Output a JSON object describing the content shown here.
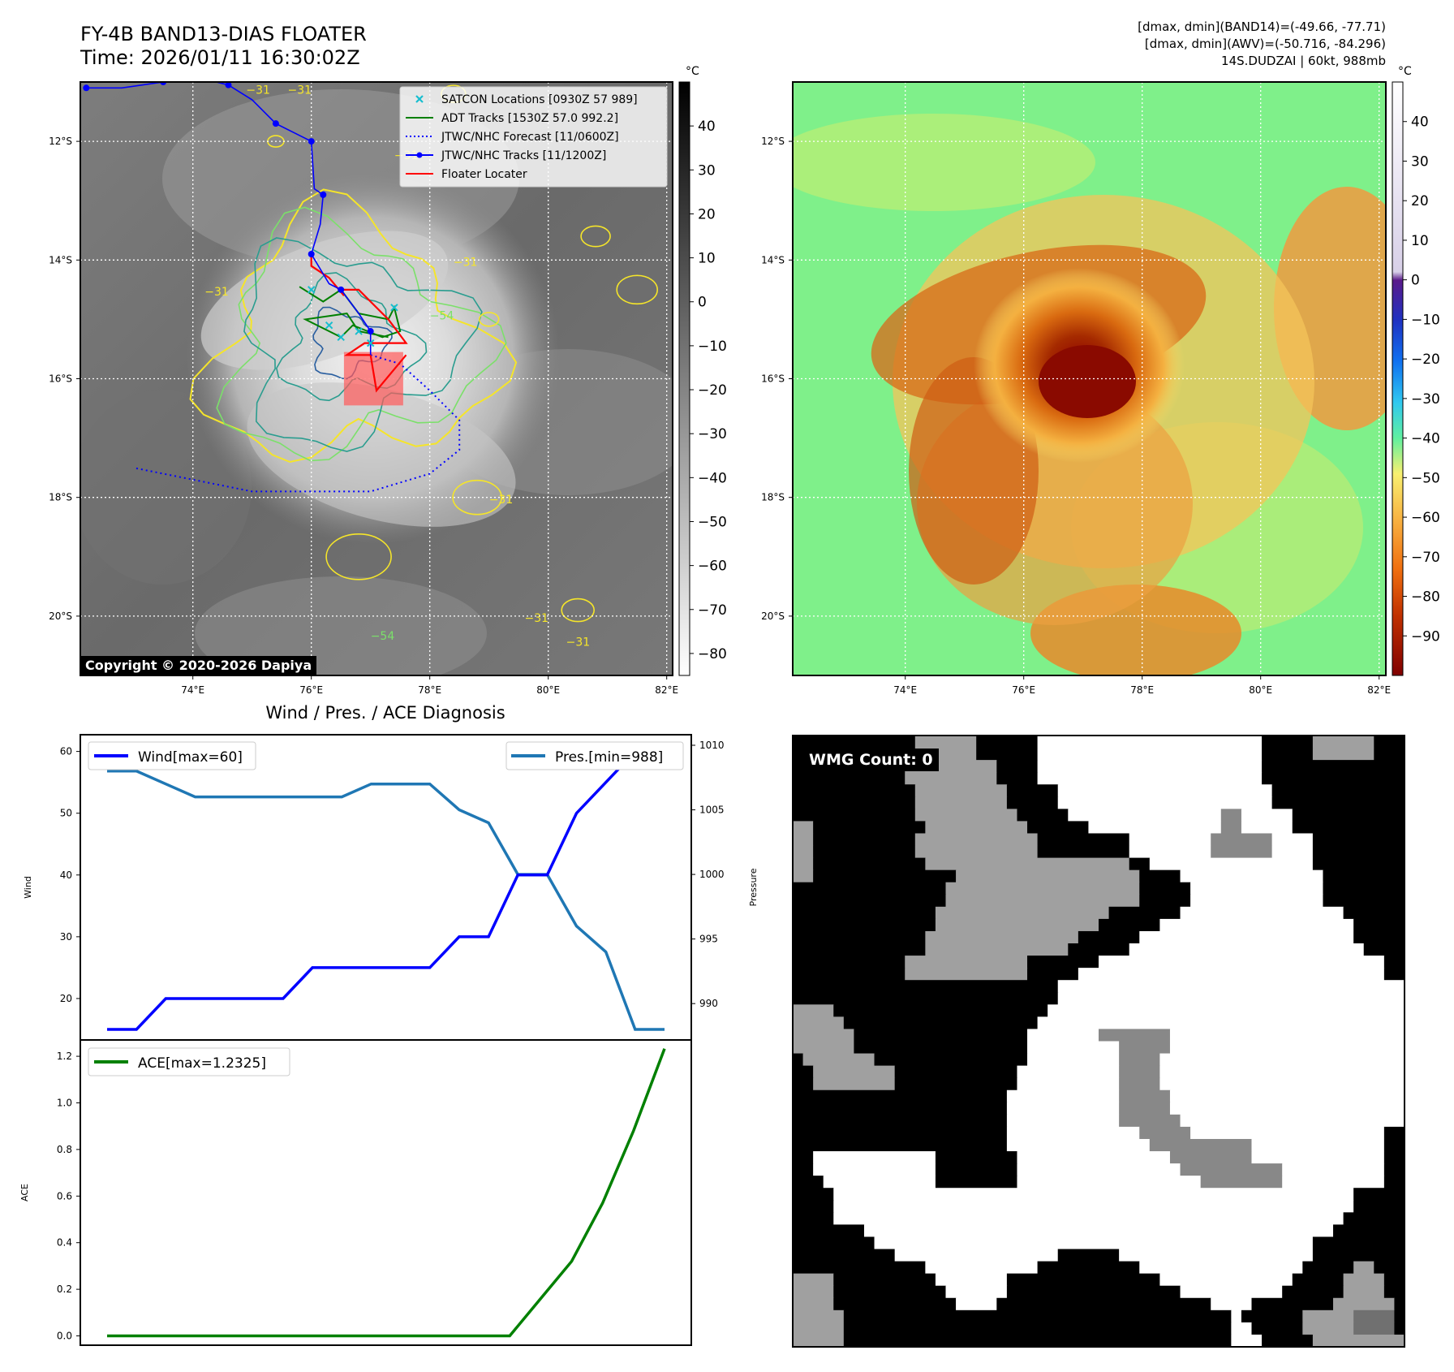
{
  "figure": {
    "title_line1": "FY-4B BAND13-DIAS FLOATER",
    "title_line2": "Time: 2026/01/11 16:30:02Z",
    "info_line1": "[dmax, dmin](BAND14)=(-49.66, -77.71)",
    "info_line2": "[dmax, dmin](AWV)=(-50.716, -84.296)",
    "info_line3": "14S.DUDZAI | 60kt, 988mb",
    "copyright": "Copyright © 2020-2026 Dapiya",
    "wmg_count": "WMG Count: 0"
  },
  "chart_data": [
    {
      "type": "map",
      "panel": "ir-enhanced",
      "lon_ticks": [
        "74°E",
        "76°E",
        "78°E",
        "80°E",
        "82°E"
      ],
      "lat_ticks": [
        "12°S",
        "14°S",
        "16°S",
        "18°S",
        "20°S"
      ],
      "lon_range": [
        72.1,
        82.1
      ],
      "lat_range": [
        -11.0,
        -21.0
      ],
      "colorbar": {
        "unit": "°C",
        "ticks": [
          40,
          30,
          20,
          10,
          0,
          -10,
          -20,
          -30,
          -40,
          -50,
          -60,
          -70,
          -80
        ],
        "range": [
          -85,
          50
        ],
        "cmap": "gray_r"
      },
      "contour_labels": [
        "−31",
        "−31",
        "−31",
        "−31",
        "−31",
        "−54",
        "−31",
        "−31",
        "−54",
        "−31"
      ],
      "legend": [
        {
          "label": "SATCON Locations [0930Z 57 989]",
          "color": "#17becf",
          "style": "x-marker"
        },
        {
          "label": "ADT Tracks [1530Z 57.0 992.2]",
          "color": "#008000",
          "style": "solid"
        },
        {
          "label": "JTWC/NHC Forecast [11/0600Z]",
          "color": "#0000ff",
          "style": "dotted"
        },
        {
          "label": "JTWC/NHC Tracks [11/1200Z]",
          "color": "#0000ff",
          "style": "solid-dot"
        },
        {
          "label": "Floater Locater",
          "color": "#ff0000",
          "style": "solid"
        }
      ],
      "jtwc_track": [
        [
          72.2,
          -11.1
        ],
        [
          72.8,
          -11.1
        ],
        [
          73.5,
          -11.0
        ],
        [
          74.0,
          -10.9
        ],
        [
          74.6,
          -11.05
        ],
        [
          75.0,
          -11.3
        ],
        [
          75.4,
          -11.7
        ],
        [
          75.8,
          -11.9
        ],
        [
          76.0,
          -12.0
        ],
        [
          76.05,
          -12.8
        ],
        [
          76.2,
          -12.9
        ],
        [
          76.15,
          -13.4
        ],
        [
          76.0,
          -13.9
        ],
        [
          76.3,
          -14.4
        ],
        [
          76.5,
          -14.5
        ],
        [
          76.8,
          -14.9
        ],
        [
          77.0,
          -15.2
        ],
        [
          77.0,
          -15.6
        ]
      ],
      "jtwc_forecast": [
        [
          77.0,
          -15.6
        ],
        [
          77.5,
          -15.75
        ],
        [
          78.0,
          -16.2
        ],
        [
          78.5,
          -16.7
        ],
        [
          78.5,
          -17.2
        ],
        [
          78.0,
          -17.6
        ],
        [
          77.0,
          -17.9
        ],
        [
          76.0,
          -17.9
        ],
        [
          75.0,
          -17.9
        ],
        [
          74.0,
          -17.7
        ],
        [
          73.0,
          -17.5
        ]
      ],
      "adt_track": [
        [
          75.8,
          -14.45
        ],
        [
          76.2,
          -14.7
        ],
        [
          76.5,
          -14.5
        ],
        [
          76.8,
          -14.9
        ],
        [
          77.3,
          -15.0
        ],
        [
          77.4,
          -14.8
        ],
        [
          77.5,
          -15.2
        ],
        [
          77.2,
          -15.3
        ],
        [
          76.7,
          -15.1
        ],
        [
          76.5,
          -15.3
        ],
        [
          76.2,
          -15.15
        ],
        [
          75.9,
          -15.0
        ],
        [
          76.6,
          -14.9
        ],
        [
          76.8,
          -15.2
        ],
        [
          77.3,
          -15.3
        ]
      ],
      "satcon_points": [
        [
          76.0,
          -14.5
        ],
        [
          76.3,
          -15.1
        ],
        [
          76.5,
          -15.3
        ],
        [
          76.8,
          -15.2
        ],
        [
          77.4,
          -14.8
        ],
        [
          77.0,
          -15.4
        ]
      ],
      "floater_polyline": [
        [
          76.0,
          -13.9
        ],
        [
          76.0,
          -14.1
        ],
        [
          76.3,
          -14.3
        ],
        [
          76.55,
          -14.6
        ],
        [
          76.5,
          -14.5
        ],
        [
          76.8,
          -14.5
        ],
        [
          77.0,
          -14.7
        ],
        [
          77.3,
          -15.0
        ],
        [
          77.6,
          -15.4
        ],
        [
          76.9,
          -15.4
        ],
        [
          76.6,
          -15.6
        ],
        [
          77.0,
          -15.6
        ],
        [
          77.1,
          -16.2
        ],
        [
          77.6,
          -15.6
        ]
      ],
      "floater_box": [
        [
          76.55,
          -15.55
        ],
        [
          77.55,
          -15.55
        ],
        [
          77.55,
          -16.45
        ],
        [
          76.55,
          -16.45
        ]
      ]
    },
    {
      "type": "heatmap",
      "panel": "awv",
      "lon_ticks": [
        "74°E",
        "76°E",
        "78°E",
        "80°E",
        "82°E"
      ],
      "lat_ticks": [
        "12°S",
        "14°S",
        "16°S",
        "18°S",
        "20°S"
      ],
      "colorbar": {
        "unit": "°C",
        "ticks": [
          40,
          30,
          20,
          10,
          0,
          -10,
          -20,
          -30,
          -40,
          -50,
          -60,
          -70,
          -80,
          -90
        ],
        "range": [
          -100,
          50
        ],
        "cmap": "jet-like with white/purple above 0"
      },
      "eye_center": [
        77.0,
        -16.0
      ],
      "min_temp": -84.296
    },
    {
      "type": "line",
      "panel": "wind-pressure",
      "title": "Wind / Pres. / ACE Diagnosis",
      "ylabel": "Wind",
      "y2label": "Pressure",
      "ylim": [
        15,
        61
      ],
      "y2lim": [
        988,
        1010
      ],
      "yticks": [
        20,
        30,
        40,
        50,
        60
      ],
      "y2ticks": [
        990,
        995,
        1000,
        1005,
        1010
      ],
      "x": [
        0,
        1,
        2,
        3,
        4,
        5,
        6,
        7,
        8,
        9,
        10,
        11,
        12,
        13,
        14,
        15,
        16,
        17,
        18,
        19
      ],
      "series": [
        {
          "name": "Wind[max=60]",
          "color": "#0000ff",
          "axis": "left",
          "values": [
            15,
            15,
            20,
            20,
            20,
            20,
            20,
            25,
            25,
            25,
            25,
            25,
            30,
            30,
            40,
            40,
            50,
            55,
            60,
            60
          ]
        },
        {
          "name": "Pres.[min=988]",
          "color": "#1f77b4",
          "axis": "right",
          "values": [
            1008,
            1008,
            1007,
            1006,
            1006,
            1006,
            1006,
            1006,
            1006,
            1007,
            1007,
            1007,
            1005,
            1004,
            1000,
            1000,
            996,
            994,
            988,
            988
          ]
        }
      ]
    },
    {
      "type": "line",
      "panel": "ace",
      "ylabel": "ACE",
      "ylim": [
        -0.04,
        1.27
      ],
      "yticks": [
        "0.0",
        "0.2",
        "0.4",
        "0.6",
        "0.8",
        "1.0",
        "1.2"
      ],
      "x": [
        0,
        1,
        2,
        3,
        4,
        5,
        6,
        7,
        8,
        9,
        10,
        11,
        12,
        13,
        14,
        15,
        16,
        17,
        18
      ],
      "series": [
        {
          "name": "ACE[max=1.2325]",
          "color": "#008000",
          "values": [
            0,
            0,
            0,
            0,
            0,
            0,
            0,
            0,
            0,
            0,
            0,
            0,
            0,
            0,
            0.16,
            0.32,
            0.57,
            0.88,
            1.2325
          ]
        }
      ]
    },
    {
      "type": "heatmap",
      "panel": "wmg",
      "levels": {
        "B": "#000000",
        "L": "#a0a0a0",
        "M": "#888888",
        "D": "#707070",
        "W": "#ffffff"
      },
      "grid": [
        "BBBBBBBBBBBBLLLLLLBBBBBBWWWWWWWWWWWWWWWWWWWWWWBBBBBLLLLLLBBB",
        "BBBBBBBBBBBBLLLLLLBBBBBBWWWWWWWWWWWWWWWWWWWWWWBBBBBLLLLLLBBB",
        "BBBBBBBBBBBLLLLLLLLLBBBBWWWWWWWWWWWWWWWWWWWWWWBBBBBBBBBBBBBB",
        "BBBBBBBBBBBLLLLLLLLLBBBBWWWWWWWWWWWWWWWWWWWWWWBBBBBBBBBBBBBB",
        "BBBBBBBBBBBBLLLLLLLLLBBBBBWWWWWWWWWWWWWWWWWWWWWBBBBBBBBBBBBB",
        "BBBBBBBBBBBBLLLLLLLLLBBBBBWWWWWWWWWWWWWWWWWWWWWBBBBBBBBBBBBB",
        "BBBBBBBBBBBBLLLLLLLLLLBBBBBWWWWWWWWWWWWWWWMMWWWWWBBBBBBBBBBB",
        "LLBBBBBBBBBBBLLLLLLLLLLBBBBBBWWWWWWWWWWWWWMMWWWWWBBBBBBBBBBB",
        "LLBBBBBBBBBBLLLLLLLLLLLLBBBBBBBBBWWWWWWWWMMMMMMWWWWBBBBBBBBB",
        "LLBBBBBBBBBBLLLLLLLLLLLLBBBBBBBBBWWWWWWWWMMMMMMWWWWBBBBBBBBB",
        "LLBBBBBBBBBBBLLLLLLLLLLLLLLLLLLLLBBWWWWWWWWWWWWWWWWBBBBBBBBB",
        "LLBBBBBBBBBBBBBBLLLLLLLLLLLLLLLLLLBBBBWWWWWWWWWWWWWWBBBBBBBB",
        "BBBBBBBBBBBBBBBLLLLLLLLLLLLLLLLLLLBBBBBWWWWWWWWWWWWWBBBBBBBB",
        "BBBBBBBBBBBBBBBLLLLLLLLLLLLLLLLLLLBBBBBWWWWWWWWWWWWWBBBBBBBB",
        "BBBBBBBBBBBBBBLLLLLLLLLLLLLLLLLBBBBBBBWWWWWWWWWWWWWWWWBBBBBB",
        "BBBBBBBBBBBBBBLLLLLLLLLLLLLLLLBBBBBBWWWWWWWWWWWWWWWWWWWBBBBB",
        "BBBBBBBBBBBBBLLLLLLLLLLLLLLLBBBBBBWWWWWWWWWWWWWWWWWWWWWBBBBB",
        "BBBBBBBBBBBBBLLLLLLLLLLLLLLBBBBBBWWWWWWWWWWWWWWWWWWWWWWWBBBB",
        "BBBBBBBBBBBLLLLLLLLLLLLBBBBBBBWWWWWWWWWWWWWWWWWWWWWWWWWWWWBB",
        "BBBBBBBBBBBLLLLLLLLLLLLBBBBBWWWWWWWWWWWWWWWWWWWWWWWWWWWWWWBB",
        "BBBBBBBBBBBBBBBBBBBBBBBBBBWWWWWWWWWWWWWWWWWWWWWWWWWWWWWWWWWW",
        "BBBBBBBBBBBBBBBBBBBBBBBBBBWWWWWWWWWWWWWWWWWWWWWWWWWWWWWWWWWW",
        "LLLLBBBBBBBBBBBBBBBBBBBBBWWWWWWWWWWWWWWWWWWWWWWWWWWWWWWWWWWW",
        "LLLLLBBBBBBBBBBBBBBBBBBBWWWWWWWWWWWWWWWWWWWWWWWWWWWWWWWWWWWW",
        "LLLLLLBBBBBBBBBBBBBBBBBWWWWWWWMMMMMMMWWWWWWWWWWWWWWWWWWWWWWW",
        "LLLLLLBBBBBBBBBBBBBBBBBWWWWWWWWWMMMMMWWWWWWWWWWWWWWWWWWWWWWW",
        "BLLLLLLLBBBBBBBBBBBBBBBWWWWWWWWWMMMMWWWWWWWWWWWWWWWWWWWWWWWW",
        "BBLLLLLLLLBBBBBBBBBBBBWWWWWWWWWWMMMMWWWWWWWWWWWWWWWWWWWWWWWW",
        "BBLLLLLLLLBBBBBBBBBBBBWWWWWWWWWWMMMMWWWWWWWWWWWWWWWWWWWWWWWW",
        "BBBBBBBBBBBBBBBBBBBBBWWWWWWWWWWWMMMMMWWWWWWWWWWWWWWWWWWWWWWW",
        "BBBBBBBBBBBBBBBBBBBBBWWWWWWWWWWWMMMMMWWWWWWWWWWWWWWWWWWWWWWW",
        "BBBBBBBBBBBBBBBBBBBBBWWWWWWWWWWWMMMMMMWWWWWWWWWWWWWWWWWWWWWW",
        "BBBBBBBBBBBBBBBBBBBBBWWWWWWWWWWWWWMMMMMWWWWWWWWWWWWWWWWWWWBB",
        "BBBBBBBBBBBBBBBBBBBBBWWWWWWWWWWWWWWMMMMMMMMMMWWWWWWWWWWWWWBB",
        "BBWWWWWWWWWWWWBBBBBBBBWWWWWWWWWWWWWWWMMMMMMMMWWWWWWWWWWWWWBBB",
        "BBWWWWWWWWWWWWBBBBBBBBWWWWWWWWWWWWWWWWMMMMMMMMMMWWWWWWWWWWBBB",
        "BBBWWWWWWWWWWWBBBBBBBBWWWWWWWWWWWWWWWWWWMMMMMMMMWWWWWWWWWWBBB",
        "BBBBWWWWWWWWWWWWWWWWWWWWWWWWWWWWWWWWWWWWWWWWWWWWWWWWWWWBBBBB",
        "BBBBWWWWWWWWWWWWWWWWWWWWWWWWWWWWWWWWWWWWWWWWWWWWWWWWWWWBBBBB",
        "BBBBWWWWWWWWWWWWWWWWWWWWWWWWWWWWWWWWWWWWWWWWWWWWWWWWWWBBBBBB",
        "BBBBBBBWWWWWWWWWWWWWWWWWWWWWWWWWWWWWWWWWWWWWWWWWWWWWWBBBBBBB",
        "BBBBBBBBWWWWWWWWWWWWWWWWWWWWWWWWWWWWWWWWWWWWWWWWWWWBBBBBBBBB",
        "BBBBBBBBBBWWWWWWWWWWWWWWWWBBBBBBWWWWWWWWWWWWWWWWWWWBBBBBBBBB",
        "BBBBBBBBBBBBBWWWWWWWWWWWBBBBBBBBBBWWWWWWWWWWWWWWWWBBBBBLLBBB",
        "LLLLBBBBBBBBBBWWWWWWWBBBBBBBBBBBBBBBWWWWWWWWWWWWWBBBBBLLLLBB",
        "LLLLBBBBBBBBBBBWWWWWWBBBBBBBBBBBBBBBBBWWWWWWWWWWBBBBBBLLLLBB",
        "LLLLBBBBBBBBBBBBWWWWBBBBBBBBBBBBBBBBBBBBBWWWWBBBBBBBBLLLLLLB",
        "LLLLLBBBBBBBBBBBBBBBBBBBBBBBBBBBBBBBBBBBBBBWBBBBBBLLLLLDDDDB",
        "LLLLLBBBBBBBBBBBBBBBBBBBBBBBBBBBBBBBBBBBBBBWWBBBBBLLLLLDDDDB",
        "LLLLLBBBBBBBBBBBBBBBBBBBBBBBBBBBBBBBBBBBBBBWWWBBBBBLLLLLLLLL"
      ]
    }
  ]
}
